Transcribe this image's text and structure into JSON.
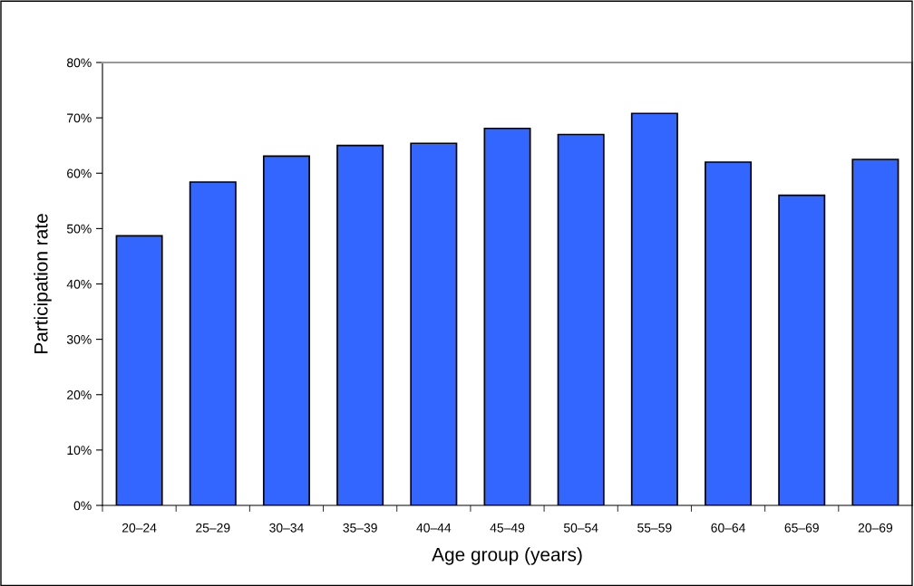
{
  "chart_data": {
    "type": "bar",
    "xlabel": "Age group (years)",
    "ylabel": "Participation rate",
    "categories": [
      "20–24",
      "25–29",
      "30–34",
      "35–39",
      "40–44",
      "45–49",
      "50–54",
      "55–59",
      "60–64",
      "65–69",
      "20–69"
    ],
    "values": [
      48.7,
      58.4,
      63.1,
      65.0,
      65.4,
      68.1,
      67.0,
      70.8,
      62.0,
      56.0,
      62.5
    ],
    "color": "#3366ff",
    "ylim": [
      0,
      80
    ],
    "yticks": [
      {
        "value": 0,
        "label": "0%"
      },
      {
        "value": 10,
        "label": "10%"
      },
      {
        "value": 20,
        "label": "20%"
      },
      {
        "value": 30,
        "label": "30%"
      },
      {
        "value": 40,
        "label": "40%"
      },
      {
        "value": 50,
        "label": "50%"
      },
      {
        "value": 60,
        "label": "60%"
      },
      {
        "value": 70,
        "label": "70%"
      },
      {
        "value": 80,
        "label": "80%"
      }
    ],
    "grid": false
  }
}
